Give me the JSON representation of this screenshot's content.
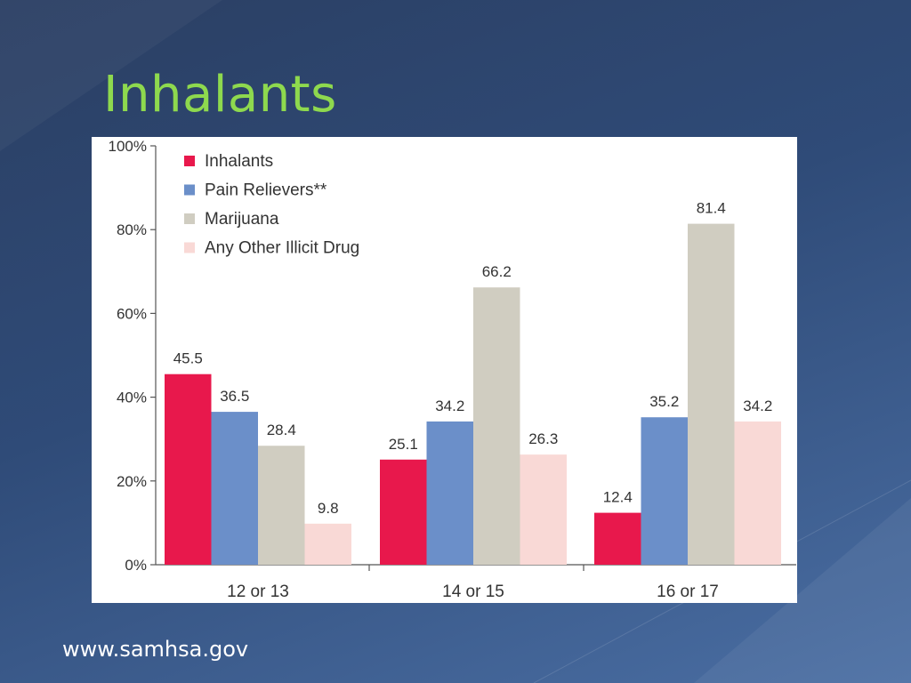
{
  "slide": {
    "title": "Inhalants",
    "footer": "www.samhsa.gov"
  },
  "chart_data": {
    "type": "bar",
    "categories": [
      "12 or 13",
      "14 or 15",
      "16 or 17"
    ],
    "series": [
      {
        "name": "Inhalants",
        "color": "#e8184c",
        "values": [
          45.5,
          25.1,
          12.4
        ]
      },
      {
        "name": "Pain Relievers**",
        "color": "#6b8fc9",
        "values": [
          36.5,
          34.2,
          35.2
        ]
      },
      {
        "name": "Marijuana",
        "color": "#d0cdc1",
        "values": [
          28.4,
          66.2,
          81.4
        ]
      },
      {
        "name": "Any Other Illicit Drug",
        "color": "#f9d9d6",
        "values": [
          9.8,
          26.3,
          34.2
        ]
      }
    ],
    "yticks": [
      "0%",
      "20%",
      "40%",
      "60%",
      "80%",
      "100%"
    ],
    "ylim": [
      0,
      100
    ],
    "legend": "top-left",
    "grid": false,
    "title": "",
    "xlabel": "",
    "ylabel": ""
  }
}
